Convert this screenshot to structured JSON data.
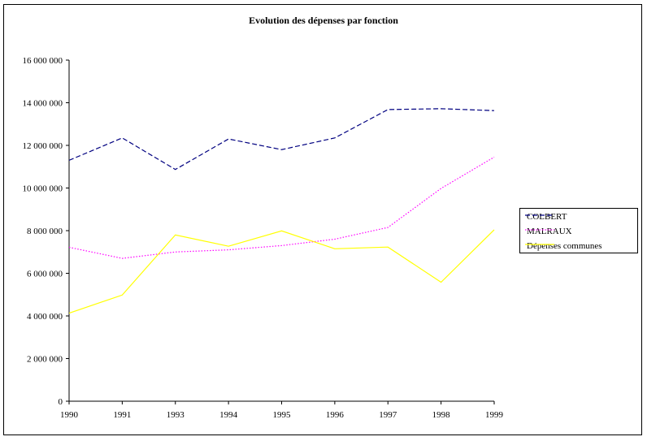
{
  "chart_data": {
    "type": "line",
    "title": "Evolution des dépenses par fonction",
    "xlabel": "",
    "ylabel": "",
    "categories": [
      "1990",
      "1991",
      "1993",
      "1994",
      "1995",
      "1996",
      "1997",
      "1998",
      "1999"
    ],
    "ylim": [
      0,
      16000000
    ],
    "yticks": [
      0,
      2000000,
      4000000,
      6000000,
      8000000,
      10000000,
      12000000,
      14000000,
      16000000
    ],
    "ytick_labels": [
      "0",
      "2 000 000",
      "4 000 000",
      "6 000 000",
      "8 000 000",
      "10 000 000",
      "12 000 000",
      "14 000 000",
      "16 000 000"
    ],
    "grid": false,
    "legend_position": "right",
    "series": [
      {
        "name": "COLBERT",
        "color": "#000080",
        "style": "dashed",
        "values": [
          11300000,
          12350000,
          10870000,
          12300000,
          11800000,
          12350000,
          13680000,
          13720000,
          13630000
        ]
      },
      {
        "name": "MALRAUX",
        "color": "#ff00ff",
        "style": "dotted",
        "values": [
          7220000,
          6700000,
          7000000,
          7100000,
          7300000,
          7600000,
          8150000,
          9980000,
          11450000
        ]
      },
      {
        "name": "Dépenses communes",
        "color": "#ffff00",
        "style": "solid",
        "values": [
          4130000,
          4980000,
          7800000,
          7270000,
          7990000,
          7150000,
          7230000,
          5580000,
          8040000
        ]
      }
    ]
  }
}
